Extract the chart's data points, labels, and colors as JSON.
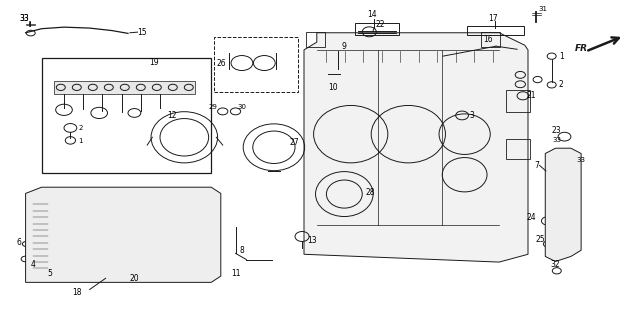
{
  "bg_color": "#ffffff",
  "line_color": "#1a1a1a",
  "fig_width": 6.4,
  "fig_height": 3.12,
  "dpi": 100
}
